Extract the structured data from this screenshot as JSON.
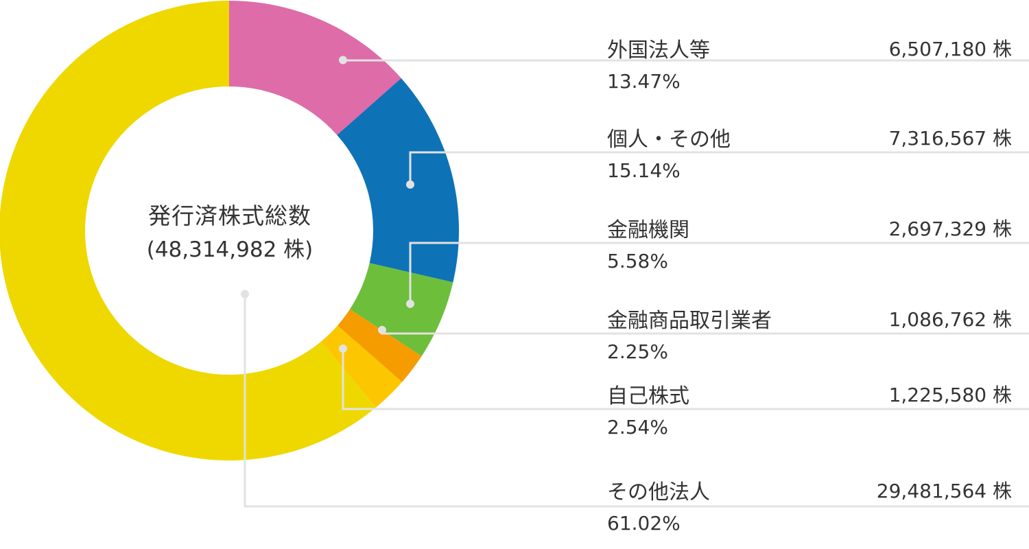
{
  "chart_data": {
    "type": "pie",
    "center_label": "発行済株式総数",
    "center_total": "(48,314,982 株)",
    "categories": [
      "外国法人等",
      "個人・その他",
      "金融機関",
      "金融商品取引業者",
      "自己株式",
      "その他法人"
    ],
    "values": [
      6507180,
      7316567,
      2697329,
      1086762,
      1225580,
      29481564
    ],
    "value_labels": [
      "6,507,180 株",
      "7,316,567 株",
      "2,697,329 株",
      "1,086,762 株",
      "1,225,580 株",
      "29,481,564 株"
    ],
    "percent_labels": [
      "13.47%",
      "15.14%",
      "5.58%",
      "2.25%",
      "2.54%",
      "61.02%"
    ],
    "colors": [
      "#de6ca8",
      "#0e72b7",
      "#6dbe3b",
      "#f59c00",
      "#fcc700",
      "#eed800"
    ],
    "legend": "right"
  }
}
